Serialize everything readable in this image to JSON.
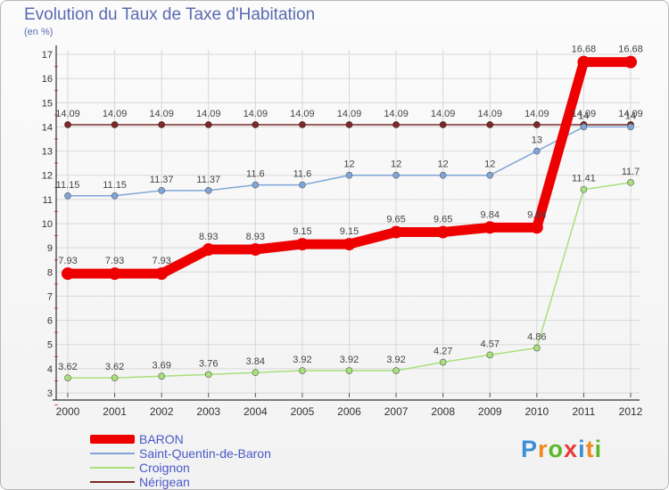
{
  "chart_data": {
    "type": "line",
    "title": "Evolution du Taux de Taxe d'Habitation",
    "subtitle": "(en %)",
    "x": [
      "2000",
      "2001",
      "2002",
      "2003",
      "2004",
      "2005",
      "2006",
      "2007",
      "2008",
      "2009",
      "2010",
      "2011",
      "2012"
    ],
    "ylim": [
      3,
      17
    ],
    "yticks": [
      3,
      4,
      5,
      6,
      7,
      8,
      9,
      10,
      11,
      12,
      13,
      14,
      15,
      16,
      17
    ],
    "grid": true,
    "legend_position": "bottom-left",
    "series": [
      {
        "name": "BARON",
        "color": "#ee0000",
        "values": [
          7.93,
          7.93,
          7.93,
          8.93,
          8.93,
          9.15,
          9.15,
          9.65,
          9.65,
          9.84,
          9.84,
          16.68,
          16.68
        ],
        "labels": [
          "7.93",
          "7.93",
          "7.93",
          "8.93",
          "8.93",
          "9.15",
          "9.15",
          "9.65",
          "9.65",
          "9.84",
          "9.84",
          "16.68",
          "16.68"
        ]
      },
      {
        "name": "Saint-Quentin-de-Baron",
        "color": "#7ea6d8",
        "values": [
          11.15,
          11.15,
          11.37,
          11.37,
          11.6,
          11.6,
          12,
          12,
          12,
          12,
          13,
          14,
          14
        ],
        "labels": [
          "11.15",
          "11.15",
          "11.37",
          "11.37",
          "11.6",
          "11.6",
          "12",
          "12",
          "12",
          "12",
          "13",
          "14",
          "14"
        ]
      },
      {
        "name": "Croignon",
        "color": "#a8e07a",
        "values": [
          3.62,
          3.62,
          3.69,
          3.76,
          3.84,
          3.92,
          3.92,
          3.92,
          4.27,
          4.57,
          4.86,
          11.41,
          11.7
        ],
        "labels": [
          "3.62",
          "3.62",
          "3.69",
          "3.76",
          "3.84",
          "3.92",
          "3.92",
          "3.92",
          "4.27",
          "4.57",
          "4.86",
          "11.41",
          "11.7"
        ]
      },
      {
        "name": "Nérigean",
        "color": "#7a2a2a",
        "values": [
          14.09,
          14.09,
          14.09,
          14.09,
          14.09,
          14.09,
          14.09,
          14.09,
          14.09,
          14.09,
          14.09,
          14.09,
          14.09
        ],
        "labels": [
          "14.09",
          "14.09",
          "14.09",
          "14.09",
          "14.09",
          "14.09",
          "14.09",
          "14.09",
          "14.09",
          "14.09",
          "14.09",
          "14.09",
          "14.09"
        ]
      }
    ]
  },
  "brand": {
    "text": "Proxiti",
    "letter_colors": [
      "#3a8fd8",
      "#f08a20",
      "#5ab82a",
      "#e83a3a",
      "#3a8fd8",
      "#f08a20",
      "#5ab82a"
    ]
  }
}
